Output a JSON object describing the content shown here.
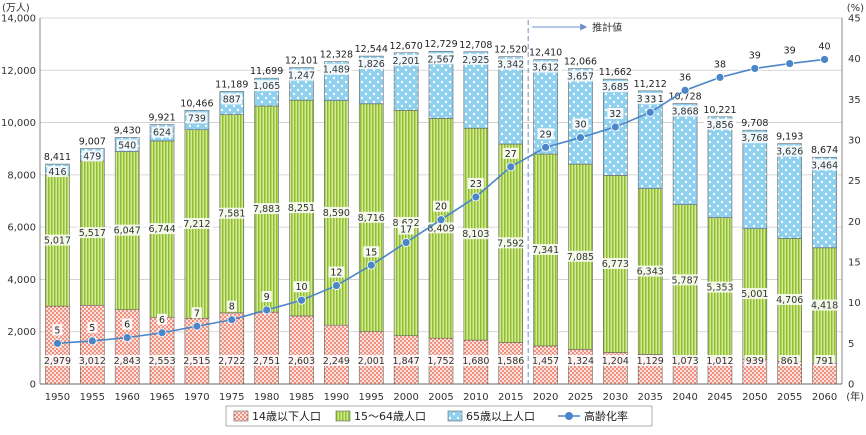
{
  "chart_data": {
    "type": "bar",
    "stacked": true,
    "secondary_type": "line",
    "y_unit": "(万人)",
    "y2_unit": "(%)",
    "x_unit": "(年)",
    "projection_label": "推計値",
    "projection_start": "2020",
    "ylim": [
      0,
      14000
    ],
    "y_ticks": [
      "0",
      "2,000",
      "4,000",
      "6,000",
      "8,000",
      "10,000",
      "12,000",
      "14,000"
    ],
    "y2lim": [
      0,
      45
    ],
    "y2_ticks": [
      "0",
      "5",
      "10",
      "15",
      "20",
      "25",
      "30",
      "35",
      "40",
      "45"
    ],
    "grid": true,
    "legend_position": "bottom",
    "categories": [
      "1950",
      "1955",
      "1960",
      "1965",
      "1970",
      "1975",
      "1980",
      "1985",
      "1990",
      "1995",
      "2000",
      "2005",
      "2010",
      "2015",
      "2020",
      "2025",
      "2030",
      "2035",
      "2040",
      "2045",
      "2050",
      "2055",
      "2060"
    ],
    "totals": [
      8411,
      9007,
      9430,
      9921,
      10466,
      11189,
      11699,
      12101,
      12328,
      12544,
      12670,
      12729,
      12708,
      12520,
      12410,
      12066,
      11662,
      11212,
      10728,
      10221,
      9708,
      9193,
      8674
    ],
    "total_labels": [
      "8,411",
      "9,007",
      "9,430",
      "9,921",
      "10,466",
      "11,189",
      "11,699",
      "12,101",
      "12,328",
      "12,544",
      "12,670",
      "12,729",
      "12,708",
      "12,520",
      "12,410",
      "12,066",
      "11,662",
      "11,212",
      "10,728",
      "10,221",
      "9,708",
      "9,193",
      "8,674"
    ],
    "series": [
      {
        "name": "14歳以下人口",
        "color": "#e8553f",
        "values": [
          2979,
          3012,
          2843,
          2553,
          2515,
          2722,
          2751,
          2603,
          2249,
          2001,
          1847,
          1752,
          1680,
          1586,
          1457,
          1324,
          1204,
          1129,
          1073,
          1012,
          939,
          861,
          791
        ],
        "labels": [
          "2,979",
          "3,012",
          "2,843",
          "2,553",
          "2,515",
          "2,722",
          "2,751",
          "2,603",
          "2,249",
          "2,001",
          "1,847",
          "1,752",
          "1,680",
          "1,586",
          "1,457",
          "1,324",
          "1,204",
          "1,129",
          "1,073",
          "1,012",
          "939",
          "861",
          "791"
        ]
      },
      {
        "name": "15～64歳人口",
        "color": "#9bc53d",
        "values": [
          5017,
          5517,
          6047,
          6744,
          7212,
          7581,
          7883,
          8251,
          8590,
          8716,
          8622,
          8409,
          8103,
          7592,
          7341,
          7085,
          6773,
          6343,
          5787,
          5353,
          5001,
          4706,
          4418
        ],
        "labels": [
          "5,017",
          "5,517",
          "6,047",
          "6,744",
          "7,212",
          "7,581",
          "7,883",
          "8,251",
          "8,590",
          "8,716",
          "8,622",
          "8,409",
          "8,103",
          "7,592",
          "7,341",
          "7,085",
          "6,773",
          "6,343",
          "5,787",
          "5,353",
          "5,001",
          "4,706",
          "4,418"
        ]
      },
      {
        "name": "65歳以上人口",
        "color": "#8fd0ee",
        "values": [
          416,
          479,
          540,
          624,
          739,
          887,
          1065,
          1247,
          1489,
          1826,
          2201,
          2567,
          2925,
          3342,
          3612,
          3657,
          3685,
          3741,
          3868,
          3856,
          3768,
          3626,
          3464
        ],
        "labels": [
          "416",
          "479",
          "540",
          "624",
          "739",
          "887",
          "1,065",
          "1,247",
          "1,489",
          "1,826",
          "2,201",
          "2,567",
          "2,925",
          "3,342",
          "3,612",
          "3,657",
          "3,685",
          "3,741",
          "3,868",
          "3,856",
          "3,768",
          "3,626",
          "3,464"
        ]
      },
      {
        "name": "高齢化率",
        "type": "line",
        "axis": "right",
        "color": "#4a86c8",
        "values": [
          5,
          5.3,
          5.7,
          6.3,
          7.1,
          7.9,
          9.1,
          10.3,
          12.1,
          14.6,
          17.4,
          20.2,
          23.0,
          26.7,
          29.1,
          30.3,
          31.6,
          33.4,
          36.1,
          37.7,
          38.8,
          39.4,
          39.9
        ],
        "labels": [
          "5",
          "5",
          "6",
          "6",
          "7",
          "8",
          "9",
          "10",
          "12",
          "15",
          "17",
          "20",
          "23",
          "27",
          "29",
          "30",
          "32",
          "33",
          "36",
          "38",
          "39",
          "39",
          "40"
        ]
      }
    ]
  }
}
